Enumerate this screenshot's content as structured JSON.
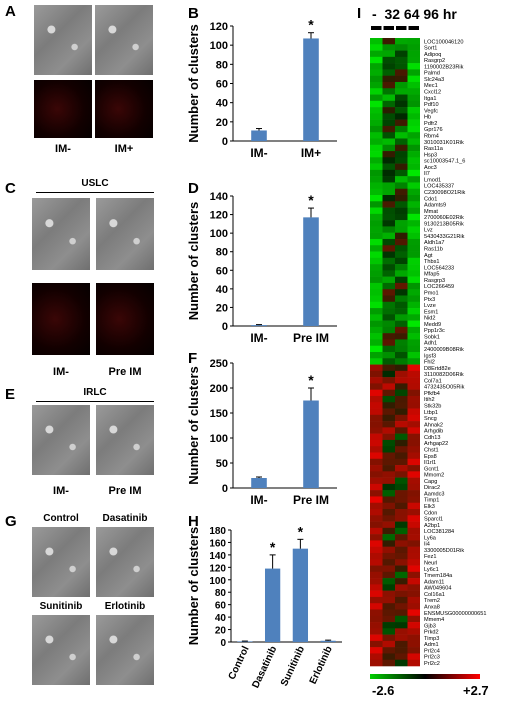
{
  "panels": {
    "A": {
      "letter": "A",
      "labels": [
        "IM-",
        "IM+"
      ]
    },
    "B": {
      "letter": "B"
    },
    "C": {
      "letter": "C",
      "header": "USLC",
      "labels": [
        "IM-",
        "Pre IM"
      ]
    },
    "D": {
      "letter": "D"
    },
    "E": {
      "letter": "E",
      "header": "IRLC",
      "labels": [
        "IM-",
        "Pre IM"
      ]
    },
    "F": {
      "letter": "F"
    },
    "G": {
      "letter": "G",
      "labels": [
        "Control",
        "Dasatinib",
        "Sunitinib",
        "Erlotinib"
      ]
    },
    "H": {
      "letter": "H"
    },
    "I": {
      "letter": "I",
      "header": "-  32 64 96 hr",
      "scale_min": "-2.6",
      "scale_max": "+2.7"
    }
  },
  "chart_data": [
    {
      "id": "B",
      "type": "bar",
      "categories": [
        "IM-",
        "IM+"
      ],
      "values": [
        11,
        107
      ],
      "errors": [
        2,
        6
      ],
      "sig": [
        false,
        true
      ],
      "ylabel": "Number of clusters",
      "ylim": [
        0,
        120
      ],
      "ticks": [
        0,
        20,
        40,
        60,
        80,
        100,
        120
      ]
    },
    {
      "id": "D",
      "type": "bar",
      "categories": [
        "IM-",
        "Pre IM"
      ],
      "values": [
        1,
        117
      ],
      "errors": [
        0.5,
        10
      ],
      "sig": [
        false,
        true
      ],
      "ylabel": "Number of clusters",
      "ylim": [
        0,
        140
      ],
      "ticks": [
        0,
        20,
        40,
        60,
        80,
        100,
        120,
        140
      ]
    },
    {
      "id": "F",
      "type": "bar",
      "categories": [
        "IM-",
        "Pre IM"
      ],
      "values": [
        20,
        175
      ],
      "errors": [
        2,
        25
      ],
      "sig": [
        false,
        true
      ],
      "ylabel": "Number of clusters",
      "ylim": [
        0,
        250
      ],
      "ticks": [
        0,
        50,
        100,
        150,
        200,
        250
      ]
    },
    {
      "id": "H",
      "type": "bar",
      "categories": [
        "Control",
        "Dasatinib",
        "Sunitinib",
        "Erlotinib"
      ],
      "values": [
        1,
        118,
        150,
        2
      ],
      "errors": [
        0.5,
        22,
        15,
        1
      ],
      "sig": [
        false,
        true,
        true,
        false
      ],
      "ylabel": "Number of clusters",
      "ylim": [
        0,
        180
      ],
      "ticks": [
        0,
        20,
        40,
        60,
        80,
        100,
        120,
        140,
        160,
        180
      ]
    }
  ],
  "heatmap_genes": [
    "LOC100046120",
    "Sort1",
    "Adipoq",
    "Rasgrp2",
    "1190002B23Rik",
    "Palmd",
    "Slc24a3",
    "Mec1",
    "Cxcl12",
    "Itga1",
    "Pdf10",
    "Vegfc",
    "Hb",
    "Pdfr2",
    "Gpr176",
    "Rbm4",
    "3010031K01Rik",
    "Ras11a",
    "Hsp3",
    "sc10003547.1_6",
    "Aoc3",
    "Il7",
    "Lmod1",
    "LOC435337",
    "C230098O21Rik",
    "Cdo1",
    "Adamts9",
    "Mmat",
    "2700060E02Rik",
    "9130213B05Rik",
    "Lvz",
    "5430433G21Rik",
    "Aldh1a7",
    "Ras11b",
    "Agt",
    "Thbs1",
    "LOC564233",
    "Mfap5",
    "Rasgrp3",
    "LOC266459",
    "Pmo1",
    "Ptx3",
    "Lvze",
    "Esm1",
    "Nid2",
    "Medd9",
    "Ppp1r3c",
    "Sobk1",
    "Adh1",
    "2400009B08Rik",
    "Igsf3",
    "Fhl2",
    "D8Ertd82e",
    "3110082D06Rik",
    "Col7a1",
    "4732435O05Rik",
    "Pfkfb4",
    "Itih2",
    "Stk32b",
    "Ltbp1",
    "Sncg",
    "Ahnak2",
    "Arhgdib",
    "Cdh13",
    "Arhgap22",
    "Chst1",
    "Eps8",
    "Il1rl1",
    "Gcnt1",
    "Mmom2",
    "Capg",
    "Dirac2",
    "Aamdc3",
    "Timp1",
    "Elk3",
    "Cdon",
    "Sparcl1",
    "A2bp1",
    "LOC381284",
    "Ly6a",
    "Ii4",
    "3300005D01Rik",
    "Fez1",
    "Neurl",
    "Ly6c1",
    "Tmem184a",
    "Adam11",
    "AW049604",
    "Col16a1",
    "Trem2",
    "Anxa8",
    "ENSMUSG00000000651",
    "Mmem4",
    "Gjb3",
    "Prkd2",
    "Timp3",
    "Adm1",
    "Prl2c4",
    "Prl2c3",
    "Prl2c2"
  ]
}
